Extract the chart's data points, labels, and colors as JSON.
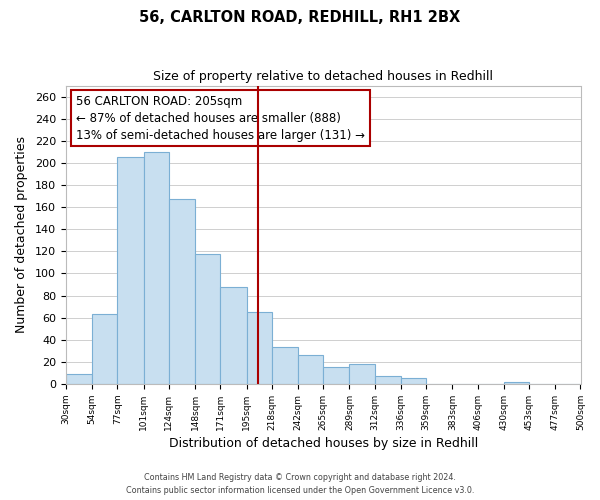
{
  "title": "56, CARLTON ROAD, REDHILL, RH1 2BX",
  "subtitle": "Size of property relative to detached houses in Redhill",
  "xlabel": "Distribution of detached houses by size in Redhill",
  "ylabel": "Number of detached properties",
  "bin_edges": [
    30,
    54,
    77,
    101,
    124,
    148,
    171,
    195,
    218,
    242,
    265,
    289,
    312,
    336,
    359,
    383,
    406,
    430,
    453,
    477,
    500
  ],
  "bin_labels": [
    "30sqm",
    "54sqm",
    "77sqm",
    "101sqm",
    "124sqm",
    "148sqm",
    "171sqm",
    "195sqm",
    "218sqm",
    "242sqm",
    "265sqm",
    "289sqm",
    "312sqm",
    "336sqm",
    "359sqm",
    "383sqm",
    "406sqm",
    "430sqm",
    "453sqm",
    "477sqm",
    "500sqm"
  ],
  "counts": [
    9,
    63,
    205,
    210,
    167,
    118,
    88,
    65,
    33,
    26,
    15,
    18,
    7,
    5,
    0,
    0,
    0,
    2,
    0,
    0
  ],
  "bar_color": "#c8dff0",
  "bar_edge_color": "#7bafd4",
  "vline_x": 205,
  "vline_color": "#aa0000",
  "annotation_text": "56 CARLTON ROAD: 205sqm\n← 87% of detached houses are smaller (888)\n13% of semi-detached houses are larger (131) →",
  "annotation_box_color": "#ffffff",
  "annotation_box_edge": "#aa0000",
  "ylim": [
    0,
    270
  ],
  "ytick_max": 261,
  "ytick_step": 20,
  "footer_line1": "Contains HM Land Registry data © Crown copyright and database right 2024.",
  "footer_line2": "Contains public sector information licensed under the Open Government Licence v3.0.",
  "background_color": "#ffffff",
  "grid_color": "#c8c8c8",
  "ann_fontsize": 8.5,
  "title_fontsize": 10.5,
  "subtitle_fontsize": 9,
  "xlabel_fontsize": 9,
  "ylabel_fontsize": 9
}
